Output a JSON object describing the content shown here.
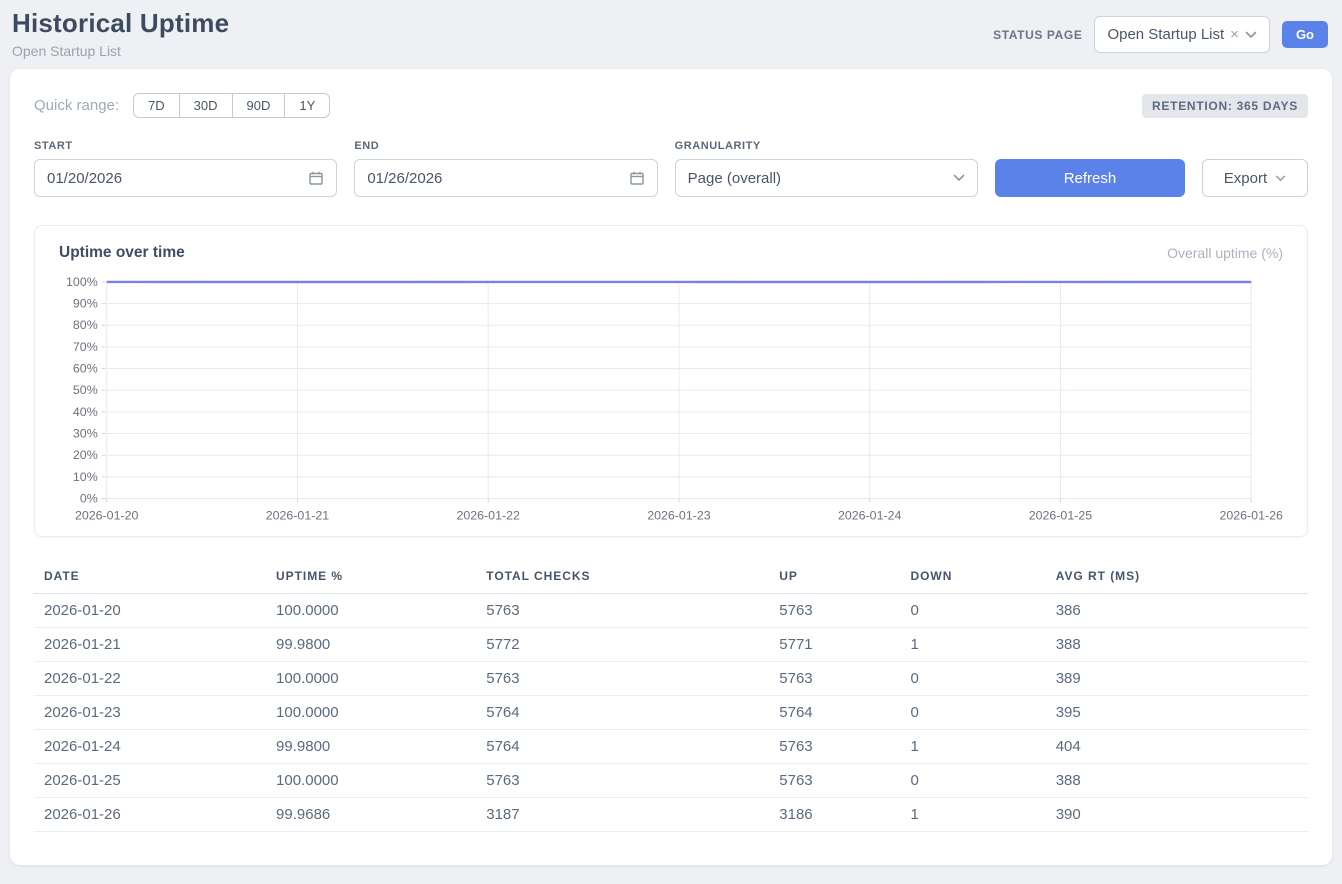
{
  "page": {
    "title": "Historical Uptime",
    "subtitle": "Open Startup List"
  },
  "header": {
    "status_page_label": "STATUS PAGE",
    "status_page_value": "Open Startup List",
    "go_label": "Go"
  },
  "icons": {
    "clear": "×",
    "chevron_down": "chevron-down",
    "calendar": "calendar"
  },
  "colors": {
    "accent": "#5b82e8",
    "line": "#7b81e4",
    "grid": "#e8eaee",
    "axis_text": "#6b7280"
  },
  "controls": {
    "quick_range_label": "Quick range:",
    "quick_ranges": [
      "7D",
      "30D",
      "90D",
      "1Y"
    ],
    "retention_badge": "RETENTION: 365 DAYS",
    "start_label": "START",
    "start_value": "01/20/2026",
    "end_label": "END",
    "end_value": "01/26/2026",
    "granularity_label": "GRANULARITY",
    "granularity_value": "Page (overall)",
    "refresh_label": "Refresh",
    "export_label": "Export"
  },
  "chart": {
    "title": "Uptime over time",
    "legend": "Overall uptime (%)"
  },
  "chart_data": {
    "type": "line",
    "title": "Uptime over time",
    "legend": "Overall uptime (%)",
    "x": [
      "2026-01-20",
      "2026-01-21",
      "2026-01-22",
      "2026-01-23",
      "2026-01-24",
      "2026-01-25",
      "2026-01-26"
    ],
    "series": [
      {
        "name": "Overall uptime (%)",
        "values": [
          100.0,
          99.98,
          100.0,
          100.0,
          99.98,
          100.0,
          99.9686
        ]
      }
    ],
    "ylim": [
      0,
      100
    ],
    "ytick_step": 10,
    "ytick_suffix": "%",
    "grid": true,
    "legend_position": "top-right",
    "line_color": "#7b81e4"
  },
  "table": {
    "columns": [
      "DATE",
      "UPTIME %",
      "TOTAL CHECKS",
      "UP",
      "DOWN",
      "AVG RT (MS)"
    ],
    "rows": [
      [
        "2026-01-20",
        "100.0000",
        "5763",
        "5763",
        "0",
        "386"
      ],
      [
        "2026-01-21",
        "99.9800",
        "5772",
        "5771",
        "1",
        "388"
      ],
      [
        "2026-01-22",
        "100.0000",
        "5763",
        "5763",
        "0",
        "389"
      ],
      [
        "2026-01-23",
        "100.0000",
        "5764",
        "5764",
        "0",
        "395"
      ],
      [
        "2026-01-24",
        "99.9800",
        "5764",
        "5763",
        "1",
        "404"
      ],
      [
        "2026-01-25",
        "100.0000",
        "5763",
        "5763",
        "0",
        "388"
      ],
      [
        "2026-01-26",
        "99.9686",
        "3187",
        "3186",
        "1",
        "390"
      ]
    ]
  }
}
